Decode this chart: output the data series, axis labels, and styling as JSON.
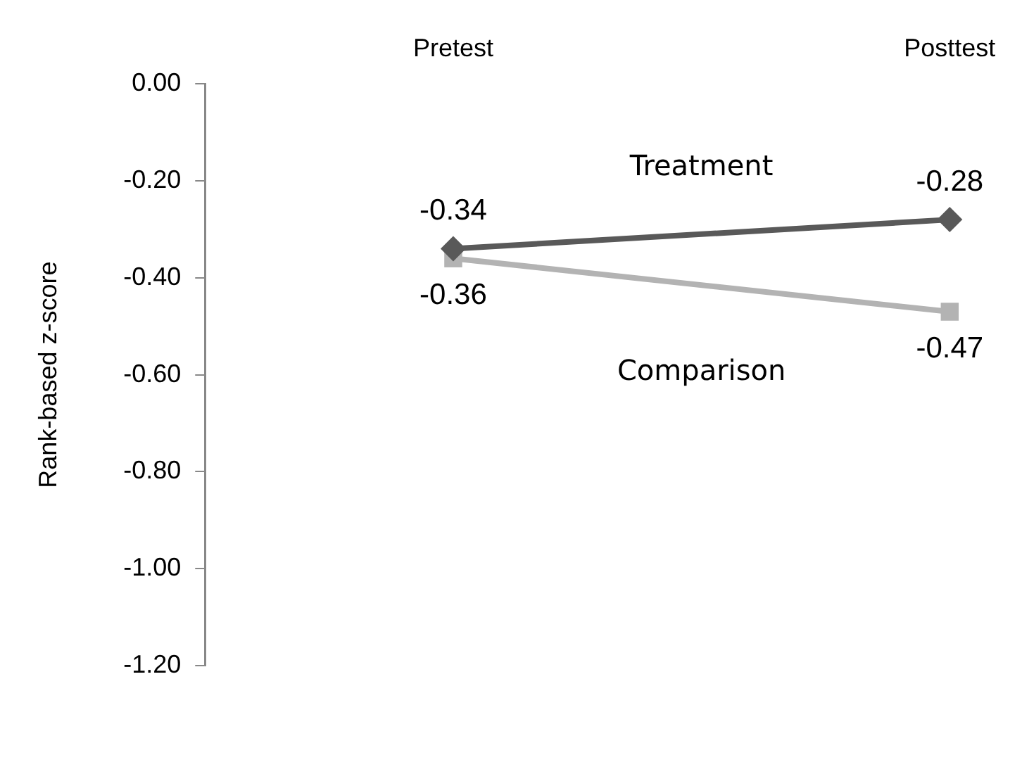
{
  "chart_data": {
    "type": "line",
    "ylabel": "Rank-based z-score",
    "categories": [
      "Pretest",
      "Posttest"
    ],
    "series": [
      {
        "name": "Treatment",
        "color": "#595959",
        "marker": "diamond",
        "values": [
          -0.34,
          -0.28
        ]
      },
      {
        "name": "Comparison",
        "color": "#b3b3b3",
        "marker": "square",
        "values": [
          -0.36,
          -0.47
        ]
      }
    ],
    "ylim": [
      -1.2,
      0
    ],
    "yticks": [
      {
        "value": 0,
        "label": "0.00"
      },
      {
        "value": -0.2,
        "label": "-0.20"
      },
      {
        "value": -0.4,
        "label": "-0.40"
      },
      {
        "value": -0.6,
        "label": "-0.60"
      },
      {
        "value": -0.8,
        "label": "-0.80"
      },
      {
        "value": -1,
        "label": "-1.00"
      },
      {
        "value": -1.2,
        "label": "-1.20"
      }
    ],
    "data_labels": true,
    "grid": false,
    "legend": false
  }
}
